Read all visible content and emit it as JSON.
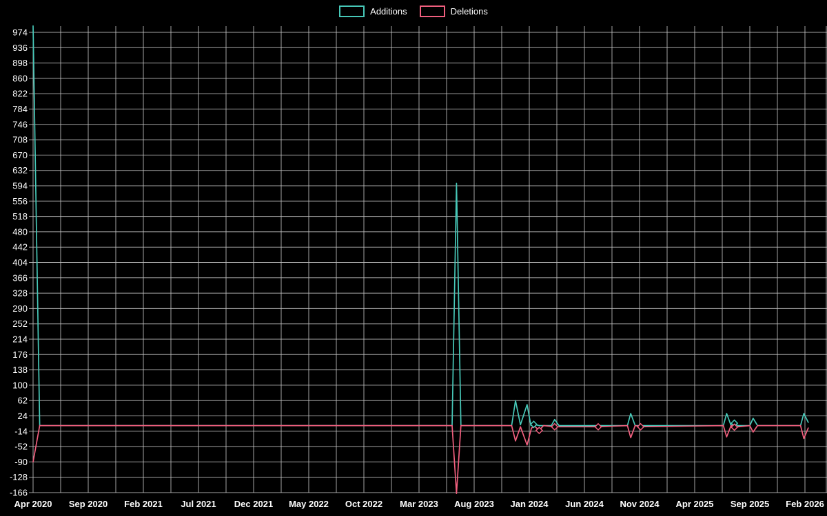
{
  "chart_data": {
    "type": "line",
    "title": "",
    "legend": {
      "position": "top-center",
      "entries": [
        "Additions",
        "Deletions"
      ]
    },
    "background_color": "#000000",
    "text_color": "#ffffff",
    "grid": {
      "show": true,
      "color": "#c2c2c2",
      "minor_x_interval_months": 2.5
    },
    "x_axis": {
      "unit": "months since Apr 2020",
      "tick_labels": [
        "Apr 2020",
        "Sep 2020",
        "Feb 2021",
        "Jul 2021",
        "Dec 2021",
        "May 2022",
        "Oct 2022",
        "Mar 2023",
        "Aug 2023",
        "Jan 2024",
        "Jun 2024",
        "Nov 2024",
        "Apr 2025",
        "Sep 2025",
        "Feb 2026"
      ],
      "tick_positions_months": [
        0,
        5,
        10,
        15,
        20,
        25,
        30,
        35,
        40,
        45,
        50,
        55,
        60,
        65,
        70
      ]
    },
    "y_axis": {
      "min": -166,
      "max": 974,
      "tick_step": 38,
      "ticks": [
        974,
        936,
        898,
        860,
        822,
        784,
        746,
        708,
        670,
        632,
        594,
        556,
        518,
        480,
        442,
        404,
        366,
        328,
        290,
        252,
        214,
        176,
        138,
        100,
        62,
        24,
        -14,
        -52,
        -90,
        -128,
        -166
      ]
    },
    "series": [
      {
        "name": "Additions",
        "color": "#47c8b8",
        "points": [
          [
            0,
            990
          ],
          [
            0.6,
            0
          ],
          [
            38.0,
            0
          ],
          [
            38.4,
            600
          ],
          [
            38.8,
            0
          ],
          [
            43.4,
            0
          ],
          [
            43.75,
            62
          ],
          [
            44.2,
            2
          ],
          [
            44.8,
            52
          ],
          [
            45.15,
            0
          ],
          [
            45.4,
            3
          ],
          [
            45.9,
            0
          ],
          [
            47.0,
            0
          ],
          [
            47.3,
            15
          ],
          [
            47.7,
            0
          ],
          [
            53.9,
            0
          ],
          [
            54.2,
            30
          ],
          [
            54.6,
            0
          ],
          [
            62.6,
            0
          ],
          [
            62.9,
            30
          ],
          [
            63.3,
            0
          ],
          [
            63.6,
            6
          ],
          [
            63.9,
            0
          ],
          [
            65.0,
            0
          ],
          [
            65.3,
            18
          ],
          [
            65.7,
            0
          ],
          [
            69.6,
            0
          ],
          [
            69.9,
            30
          ],
          [
            70.3,
            8
          ]
        ]
      },
      {
        "name": "Deletions",
        "color": "#f05f7e",
        "points": [
          [
            0,
            -90
          ],
          [
            0.6,
            0
          ],
          [
            38.0,
            0
          ],
          [
            38.4,
            -168
          ],
          [
            38.8,
            0
          ],
          [
            43.4,
            0
          ],
          [
            43.75,
            -38
          ],
          [
            44.2,
            -3
          ],
          [
            44.8,
            -48
          ],
          [
            45.2,
            -6
          ],
          [
            45.5,
            -2
          ],
          [
            45.9,
            -12
          ],
          [
            46.3,
            0
          ],
          [
            47.3,
            -3
          ],
          [
            51.25,
            -3
          ],
          [
            53.9,
            0
          ],
          [
            54.2,
            -30
          ],
          [
            54.6,
            0
          ],
          [
            55.1,
            -3
          ],
          [
            62.6,
            0
          ],
          [
            62.9,
            -28
          ],
          [
            63.3,
            0
          ],
          [
            63.6,
            -4
          ],
          [
            65.0,
            0
          ],
          [
            65.3,
            -16
          ],
          [
            65.7,
            0
          ],
          [
            69.6,
            0
          ],
          [
            69.9,
            -32
          ],
          [
            70.3,
            -6
          ]
        ]
      }
    ],
    "markers": {
      "shape": "diamond",
      "Additions": [
        [
          45.4,
          3
        ],
        [
          63.6,
          6
        ]
      ],
      "Deletions": [
        [
          45.9,
          -12
        ],
        [
          47.3,
          -3
        ],
        [
          51.25,
          -3
        ],
        [
          55.1,
          -3
        ],
        [
          63.6,
          -4
        ]
      ]
    }
  }
}
